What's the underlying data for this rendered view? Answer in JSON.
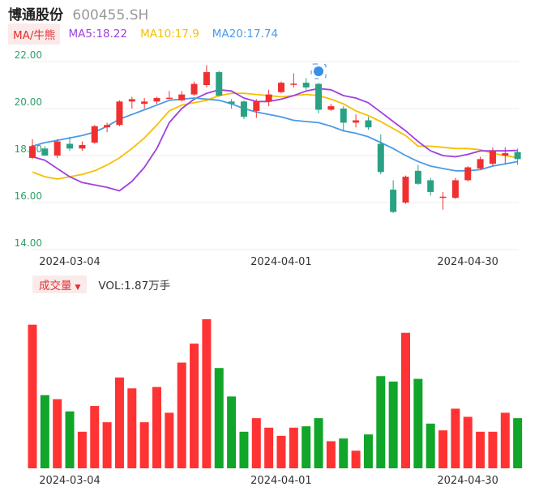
{
  "header": {
    "name": "博通股份",
    "code": "600455.SH"
  },
  "legend": {
    "ma_button": "MA/牛熊",
    "ma5": "MA5:18.22",
    "ma10": "MA10:17.9",
    "ma20": "MA20:17.74"
  },
  "volume_legend": {
    "button": "成交量",
    "value": "VOL:1.87万手"
  },
  "colors": {
    "up": "#f03030",
    "down": "#2aa184",
    "vol_up": "#ff3333",
    "vol_down": "#11a52a",
    "ma5": "#a040e0",
    "ma10": "#f5c000",
    "ma20": "#4a9be8"
  },
  "chart_data": [
    {
      "type": "candlestick",
      "ylim": [
        14,
        22
      ],
      "yticks": [
        "22.00",
        "20.00",
        "18.00",
        "16.00",
        "14.00"
      ],
      "xticks": [
        {
          "label": "2024-03-04",
          "index": 0
        },
        {
          "label": "2024-04-01",
          "index": 17
        },
        {
          "label": "2024-04-30",
          "index": 32
        }
      ],
      "candles": [
        {
          "o": 17.9,
          "h": 18.7,
          "l": 17.85,
          "c": 18.4
        },
        {
          "o": 18.3,
          "h": 18.4,
          "l": 18.0,
          "c": 18.0
        },
        {
          "o": 18.0,
          "h": 18.7,
          "l": 17.9,
          "c": 18.6
        },
        {
          "o": 18.5,
          "h": 18.8,
          "l": 18.2,
          "c": 18.3
        },
        {
          "o": 18.3,
          "h": 18.6,
          "l": 18.2,
          "c": 18.45
        },
        {
          "o": 18.55,
          "h": 19.3,
          "l": 18.5,
          "c": 19.25
        },
        {
          "o": 19.2,
          "h": 19.4,
          "l": 19.0,
          "c": 19.3
        },
        {
          "o": 19.3,
          "h": 20.35,
          "l": 19.25,
          "c": 20.3
        },
        {
          "o": 20.3,
          "h": 20.5,
          "l": 20.0,
          "c": 20.4
        },
        {
          "o": 20.2,
          "h": 20.45,
          "l": 20.0,
          "c": 20.3
        },
        {
          "o": 20.3,
          "h": 20.5,
          "l": 20.2,
          "c": 20.45
        },
        {
          "o": 20.45,
          "h": 20.75,
          "l": 20.45,
          "c": 20.46
        },
        {
          "o": 20.35,
          "h": 20.75,
          "l": 20.3,
          "c": 20.6
        },
        {
          "o": 20.6,
          "h": 21.15,
          "l": 20.55,
          "c": 21.05
        },
        {
          "o": 21.0,
          "h": 21.85,
          "l": 20.9,
          "c": 21.55
        },
        {
          "o": 21.55,
          "h": 21.6,
          "l": 20.5,
          "c": 20.55
        },
        {
          "o": 20.3,
          "h": 20.4,
          "l": 20.0,
          "c": 20.2
        },
        {
          "o": 20.3,
          "h": 20.35,
          "l": 19.55,
          "c": 19.65
        },
        {
          "o": 19.9,
          "h": 20.4,
          "l": 19.6,
          "c": 20.3
        },
        {
          "o": 20.3,
          "h": 20.8,
          "l": 20.1,
          "c": 20.6
        },
        {
          "o": 20.7,
          "h": 21.15,
          "l": 20.65,
          "c": 21.1
        },
        {
          "o": 21.05,
          "h": 21.5,
          "l": 20.9,
          "c": 21.06
        },
        {
          "o": 21.1,
          "h": 21.3,
          "l": 20.8,
          "c": 20.9
        },
        {
          "o": 21.05,
          "h": 21.1,
          "l": 19.8,
          "c": 19.95
        },
        {
          "o": 19.95,
          "h": 20.2,
          "l": 19.9,
          "c": 20.1
        },
        {
          "o": 20.0,
          "h": 20.1,
          "l": 19.05,
          "c": 19.4
        },
        {
          "o": 19.4,
          "h": 19.75,
          "l": 19.2,
          "c": 19.5
        },
        {
          "o": 19.5,
          "h": 19.65,
          "l": 19.1,
          "c": 19.2
        },
        {
          "o": 18.5,
          "h": 18.9,
          "l": 17.2,
          "c": 17.3
        },
        {
          "o": 16.55,
          "h": 16.95,
          "l": 15.55,
          "c": 15.6
        },
        {
          "o": 16.0,
          "h": 17.15,
          "l": 15.95,
          "c": 17.1
        },
        {
          "o": 17.35,
          "h": 17.6,
          "l": 16.75,
          "c": 16.8
        },
        {
          "o": 16.95,
          "h": 17.05,
          "l": 16.3,
          "c": 16.45
        },
        {
          "o": 16.2,
          "h": 16.45,
          "l": 15.7,
          "c": 16.25
        },
        {
          "o": 16.2,
          "h": 17.05,
          "l": 16.15,
          "c": 16.95
        },
        {
          "o": 16.95,
          "h": 17.55,
          "l": 16.9,
          "c": 17.5
        },
        {
          "o": 17.45,
          "h": 17.95,
          "l": 17.4,
          "c": 17.85
        },
        {
          "o": 17.65,
          "h": 18.35,
          "l": 17.55,
          "c": 18.2
        },
        {
          "o": 18.0,
          "h": 18.35,
          "l": 17.65,
          "c": 18.1
        },
        {
          "o": 18.15,
          "h": 18.3,
          "l": 17.6,
          "c": 17.85
        }
      ],
      "ma5": [
        17.95,
        17.8,
        17.45,
        17.1,
        16.85,
        16.75,
        16.65,
        16.5,
        16.9,
        17.5,
        18.3,
        19.4,
        20.0,
        20.4,
        20.65,
        20.8,
        20.75,
        20.45,
        20.3,
        20.3,
        20.4,
        20.55,
        20.75,
        20.85,
        20.8,
        20.55,
        20.45,
        20.25,
        19.85,
        19.45,
        19.05,
        18.6,
        18.2,
        18.0,
        17.95,
        18.05,
        18.2,
        18.2,
        18.2,
        18.22
      ],
      "ma10": [
        17.3,
        17.1,
        17.0,
        17.1,
        17.2,
        17.35,
        17.6,
        17.9,
        18.3,
        18.75,
        19.3,
        19.9,
        20.15,
        20.25,
        20.35,
        20.55,
        20.65,
        20.65,
        20.6,
        20.55,
        20.5,
        20.55,
        20.6,
        20.55,
        20.4,
        20.2,
        19.9,
        19.7,
        19.45,
        19.15,
        18.85,
        18.4,
        18.4,
        18.35,
        18.3,
        18.3,
        18.25,
        18.1,
        18.0,
        17.9
      ],
      "ma20": [
        18.4,
        18.55,
        18.65,
        18.75,
        18.85,
        19.0,
        19.25,
        19.55,
        19.75,
        19.95,
        20.15,
        20.35,
        20.4,
        20.45,
        20.4,
        20.35,
        20.2,
        20.0,
        19.85,
        19.75,
        19.65,
        19.5,
        19.45,
        19.4,
        19.25,
        19.05,
        18.95,
        18.8,
        18.55,
        18.3,
        18.0,
        17.75,
        17.55,
        17.45,
        17.35,
        17.35,
        17.4,
        17.55,
        17.65,
        17.74
      ],
      "volume": [
        106,
        54,
        51,
        42,
        27,
        46,
        34,
        67,
        59,
        34,
        60,
        41,
        78,
        92,
        110,
        74,
        53,
        27,
        37,
        30,
        24,
        30,
        31,
        37,
        20,
        22,
        13,
        25,
        68,
        64,
        100,
        66,
        33,
        28,
        44,
        38,
        27,
        27,
        41,
        37
      ]
    }
  ]
}
